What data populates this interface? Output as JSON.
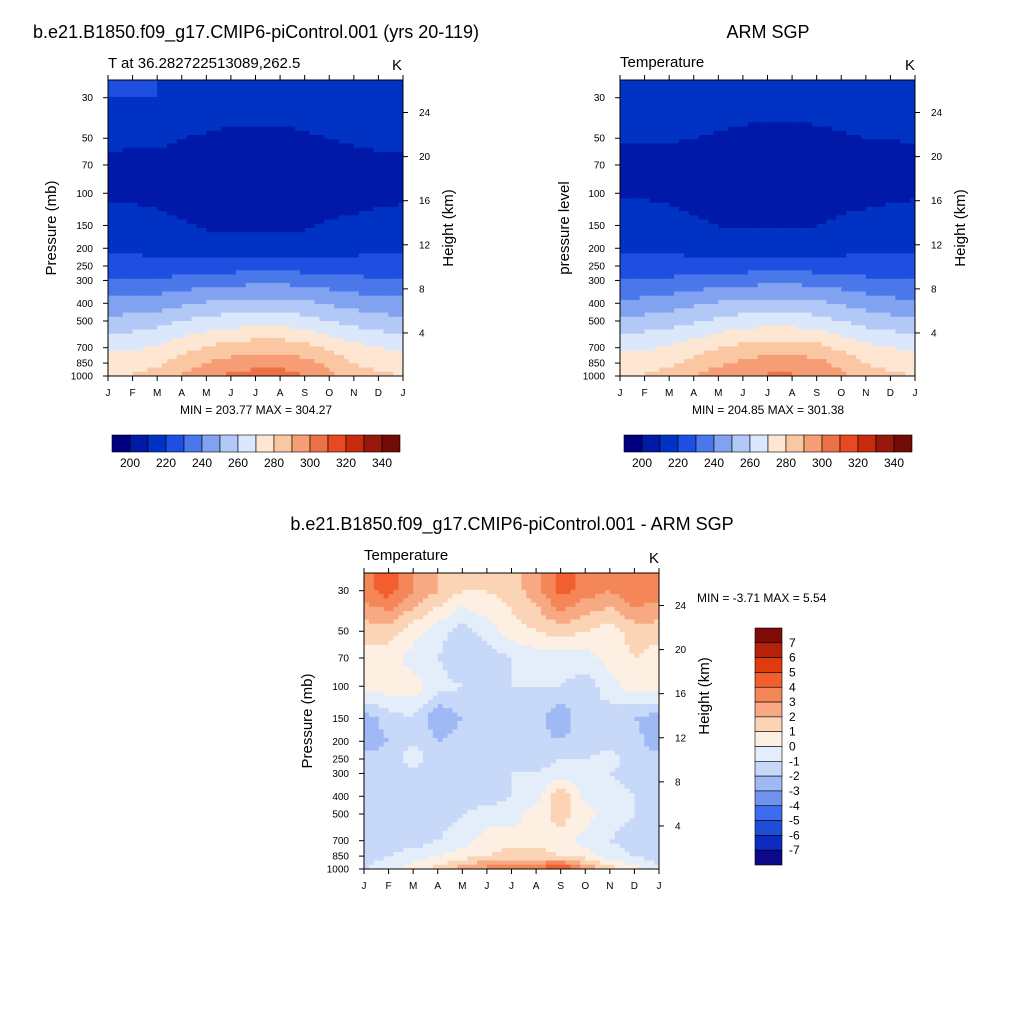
{
  "months": [
    "J",
    "F",
    "M",
    "A",
    "M",
    "J",
    "J",
    "A",
    "S",
    "O",
    "N",
    "D",
    "J"
  ],
  "pressure_ticks": [
    "30",
    "50",
    "70",
    "100",
    "150",
    "200",
    "250",
    "300",
    "400",
    "500",
    "700",
    "850",
    "1000"
  ],
  "pressure_values": [
    30,
    50,
    70,
    100,
    150,
    200,
    250,
    300,
    400,
    500,
    700,
    850,
    1000
  ],
  "height_ticks": [
    "24",
    "20",
    "16",
    "12",
    "8",
    "4"
  ],
  "height_values": [
    24,
    20,
    16,
    12,
    8,
    4
  ],
  "abs_palette": [
    "#00007f",
    "#0019a8",
    "#0033c4",
    "#1f4fe0",
    "#4a78ea",
    "#80a2f0",
    "#b2c8f6",
    "#dbe8fb",
    "#fde6d2",
    "#fbc6a2",
    "#f69d75",
    "#ee7046",
    "#e84a1f",
    "#c62b0d",
    "#97180a",
    "#700b05"
  ],
  "abs_colorbar_labels": [
    "200",
    "220",
    "240",
    "260",
    "280",
    "300",
    "320",
    "340"
  ],
  "diff_palette": [
    "#0a0a8a",
    "#0f2bbf",
    "#1d4ed8",
    "#3d6cf0",
    "#6f93ef",
    "#9fb9f4",
    "#c7d8f8",
    "#e4eefb",
    "#fdf0e2",
    "#fbd3b5",
    "#f7a983",
    "#f58658",
    "#f25e2d",
    "#df3b0d",
    "#b5230a",
    "#7f0a08"
  ],
  "diff_colorbar_labels": [
    "7",
    "6",
    "5",
    "4",
    "3",
    "2",
    "1",
    "0",
    "-1",
    "-2",
    "-3",
    "-4",
    "-5",
    "-6",
    "-7"
  ],
  "panels": {
    "model": {
      "title": "b.e21.B1850.f09_g17.CMIP6-piControl.001 (yrs 20-119)",
      "left_label": "T at 36.282722513089,262.5",
      "unit": "K",
      "ylabel": "Pressure (mb)",
      "ylabel_right": "Height (km)",
      "minmax": "MIN = 203.77 MAX = 304.27"
    },
    "obs": {
      "title": "ARM SGP",
      "left_label": "Temperature",
      "unit": "K",
      "ylabel": "pressure level",
      "ylabel_right": "Height (km)",
      "minmax": "MIN = 204.85 MAX = 301.38"
    },
    "diff": {
      "title": "b.e21.B1850.f09_g17.CMIP6-piControl.001 - ARM SGP",
      "left_label": "Temperature",
      "unit": "K",
      "ylabel": "Pressure (mb)",
      "ylabel_right": "Height (km)",
      "minmax": "MIN =  -3.71 MAX =   5.54"
    }
  },
  "chart_data": [
    {
      "type": "heatmap",
      "title": "b.e21.B1850.f09_g17.CMIP6-piControl.001 (yrs 20-119)",
      "subtitle": "T at 36.282722513089,262.5",
      "units": "K",
      "ylabel": "Pressure (mb)",
      "y2label": "Height (km)",
      "x": [
        "J",
        "F",
        "M",
        "A",
        "M",
        "J",
        "J",
        "A",
        "S",
        "O",
        "N",
        "D",
        "J"
      ],
      "y": [
        30,
        50,
        70,
        100,
        150,
        200,
        250,
        300,
        400,
        500,
        700,
        850,
        1000
      ],
      "colorbar_levels": [
        200,
        210,
        220,
        230,
        240,
        250,
        260,
        270,
        280,
        290,
        300,
        310,
        320,
        330,
        340
      ],
      "min": 203.77,
      "max": 304.27,
      "values": [
        [
          220,
          220,
          220,
          218,
          216,
          215,
          214,
          214,
          215,
          216,
          218,
          219,
          220
        ],
        [
          212,
          212,
          212,
          210,
          209,
          208,
          208,
          208,
          209,
          210,
          211,
          212,
          212
        ],
        [
          208,
          207,
          207,
          205,
          204,
          203,
          203,
          203,
          204,
          206,
          207,
          208,
          208
        ],
        [
          208,
          208,
          207,
          205,
          204,
          204,
          204,
          204,
          204,
          205,
          206,
          207,
          208
        ],
        [
          214,
          214,
          213,
          211,
          209,
          208,
          208,
          208,
          209,
          211,
          212,
          214,
          214
        ],
        [
          218,
          218,
          217,
          215,
          214,
          214,
          214,
          214,
          214,
          216,
          217,
          218,
          218
        ],
        [
          224,
          224,
          223,
          223,
          224,
          225,
          226,
          226,
          225,
          224,
          224,
          224,
          224
        ],
        [
          231,
          231,
          232,
          233,
          235,
          236,
          237,
          237,
          236,
          234,
          233,
          231,
          231
        ],
        [
          243,
          244,
          245,
          248,
          251,
          253,
          254,
          254,
          252,
          249,
          246,
          244,
          243
        ],
        [
          253,
          254,
          256,
          260,
          263,
          265,
          266,
          266,
          264,
          260,
          257,
          254,
          253
        ],
        [
          268,
          269,
          271,
          276,
          281,
          284,
          286,
          286,
          283,
          278,
          273,
          270,
          268
        ],
        [
          274,
          275,
          278,
          284,
          290,
          294,
          297,
          297,
          294,
          287,
          280,
          276,
          274
        ],
        [
          280,
          281,
          284,
          291,
          297,
          302,
          304,
          304,
          300,
          293,
          286,
          282,
          280
        ]
      ]
    },
    {
      "type": "heatmap",
      "title": "ARM SGP",
      "subtitle": "Temperature",
      "units": "K",
      "ylabel": "pressure level",
      "y2label": "Height (km)",
      "x": [
        "J",
        "F",
        "M",
        "A",
        "M",
        "J",
        "J",
        "A",
        "S",
        "O",
        "N",
        "D",
        "J"
      ],
      "y": [
        30,
        50,
        70,
        100,
        150,
        200,
        250,
        300,
        400,
        500,
        700,
        850,
        1000
      ],
      "colorbar_levels": [
        200,
        210,
        220,
        230,
        240,
        250,
        260,
        270,
        280,
        290,
        300,
        310,
        320,
        330,
        340
      ],
      "min": 204.85,
      "max": 301.38,
      "values": [
        [
          217,
          217,
          217,
          216,
          215,
          214,
          213,
          213,
          214,
          215,
          216,
          217,
          217
        ],
        [
          211,
          211,
          211,
          210,
          209,
          208,
          208,
          208,
          208,
          209,
          210,
          210,
          211
        ],
        [
          207,
          206,
          206,
          205,
          205,
          204,
          204,
          204,
          205,
          205,
          206,
          207,
          207
        ],
        [
          209,
          209,
          208,
          206,
          205,
          205,
          205,
          205,
          205,
          206,
          207,
          208,
          209
        ],
        [
          214,
          214,
          214,
          212,
          210,
          209,
          209,
          209,
          210,
          212,
          213,
          214,
          214
        ],
        [
          219,
          219,
          219,
          217,
          215,
          215,
          215,
          215,
          215,
          217,
          218,
          219,
          219
        ],
        [
          224,
          224,
          224,
          223,
          224,
          225,
          226,
          226,
          225,
          224,
          224,
          224,
          224
        ],
        [
          230,
          231,
          232,
          233,
          235,
          236,
          237,
          237,
          236,
          234,
          232,
          231,
          230
        ],
        [
          242,
          243,
          245,
          248,
          251,
          253,
          254,
          254,
          252,
          249,
          246,
          243,
          242
        ],
        [
          253,
          254,
          256,
          259,
          262,
          265,
          266,
          266,
          264,
          260,
          256,
          254,
          253
        ],
        [
          268,
          269,
          271,
          275,
          280,
          283,
          285,
          285,
          283,
          278,
          273,
          270,
          268
        ],
        [
          274,
          275,
          278,
          283,
          288,
          292,
          295,
          295,
          293,
          287,
          280,
          276,
          274
        ],
        [
          280,
          281,
          284,
          290,
          295,
          299,
          301,
          301,
          299,
          293,
          286,
          282,
          280
        ]
      ]
    },
    {
      "type": "heatmap",
      "title": "b.e21.B1850.f09_g17.CMIP6-piControl.001 - ARM SGP",
      "subtitle": "Temperature",
      "units": "K",
      "ylabel": "Pressure (mb)",
      "y2label": "Height (km)",
      "x": [
        "J",
        "F",
        "M",
        "A",
        "M",
        "J",
        "J",
        "A",
        "S",
        "O",
        "N",
        "D",
        "J"
      ],
      "y": [
        30,
        50,
        70,
        100,
        150,
        200,
        250,
        300,
        400,
        500,
        700,
        850,
        1000
      ],
      "colorbar_levels": [
        -7,
        -6,
        -5,
        -4,
        -3,
        -2,
        -1,
        0,
        1,
        2,
        3,
        4,
        5,
        6,
        7
      ],
      "min": -3.71,
      "max": 5.54,
      "values": [
        [
          3.5,
          4.5,
          3.0,
          2.0,
          1.0,
          1.0,
          1.5,
          2.5,
          4.5,
          3.5,
          3.0,
          4.0,
          3.5
        ],
        [
          1.5,
          1.5,
          0.5,
          -0.5,
          -1.5,
          -0.5,
          0.5,
          1.0,
          1.5,
          1.0,
          0.5,
          1.5,
          1.5
        ],
        [
          0.5,
          0.5,
          -0.5,
          -1.0,
          -2.0,
          -1.5,
          -1.0,
          -0.5,
          -0.5,
          -0.5,
          0.5,
          1.0,
          0.5
        ],
        [
          0.5,
          0.5,
          0.5,
          -0.5,
          -1.0,
          -1.5,
          -1.0,
          -1.0,
          -1.0,
          -1.5,
          -0.5,
          0.5,
          0.5
        ],
        [
          -2.5,
          -1.5,
          -1.0,
          -3.0,
          -2.0,
          -1.5,
          -1.0,
          -1.5,
          -3.0,
          -1.0,
          -1.5,
          -2.0,
          -2.5
        ],
        [
          -3.0,
          -2.0,
          -1.0,
          -2.0,
          -1.5,
          -1.5,
          -1.0,
          -1.5,
          -2.0,
          -1.5,
          -1.5,
          -1.5,
          -3.0
        ],
        [
          -1.5,
          -1.5,
          -0.5,
          -1.5,
          -1.5,
          -1.5,
          -1.5,
          -1.5,
          -1.0,
          -1.0,
          -0.5,
          -1.5,
          -1.5
        ],
        [
          -1.5,
          -1.5,
          -1.5,
          -1.5,
          -1.5,
          -1.5,
          -1.0,
          -1.0,
          -0.5,
          -0.5,
          -1.0,
          -1.5,
          -1.5
        ],
        [
          -1.5,
          -1.5,
          -1.5,
          -1.5,
          -1.5,
          -1.5,
          -1.0,
          -0.5,
          2.0,
          -0.5,
          -0.5,
          -1.0,
          -1.5
        ],
        [
          -1.5,
          -1.5,
          -1.5,
          -1.5,
          -1.0,
          -0.5,
          -0.5,
          0.5,
          1.5,
          0.5,
          -0.5,
          -1.0,
          -1.5
        ],
        [
          -2.0,
          -1.5,
          -1.5,
          -1.0,
          -0.5,
          0.5,
          0.5,
          0.5,
          0.5,
          -0.5,
          -1.0,
          -1.5,
          -2.0
        ],
        [
          -1.5,
          -1.0,
          -0.5,
          0.0,
          0.5,
          1.0,
          1.5,
          1.5,
          1.0,
          0.5,
          -0.5,
          -1.0,
          -1.5
        ],
        [
          -1.0,
          -0.5,
          0.5,
          1.5,
          2.5,
          3.5,
          3.5,
          4.0,
          5.5,
          3.0,
          1.5,
          0.5,
          -1.0
        ]
      ]
    }
  ]
}
